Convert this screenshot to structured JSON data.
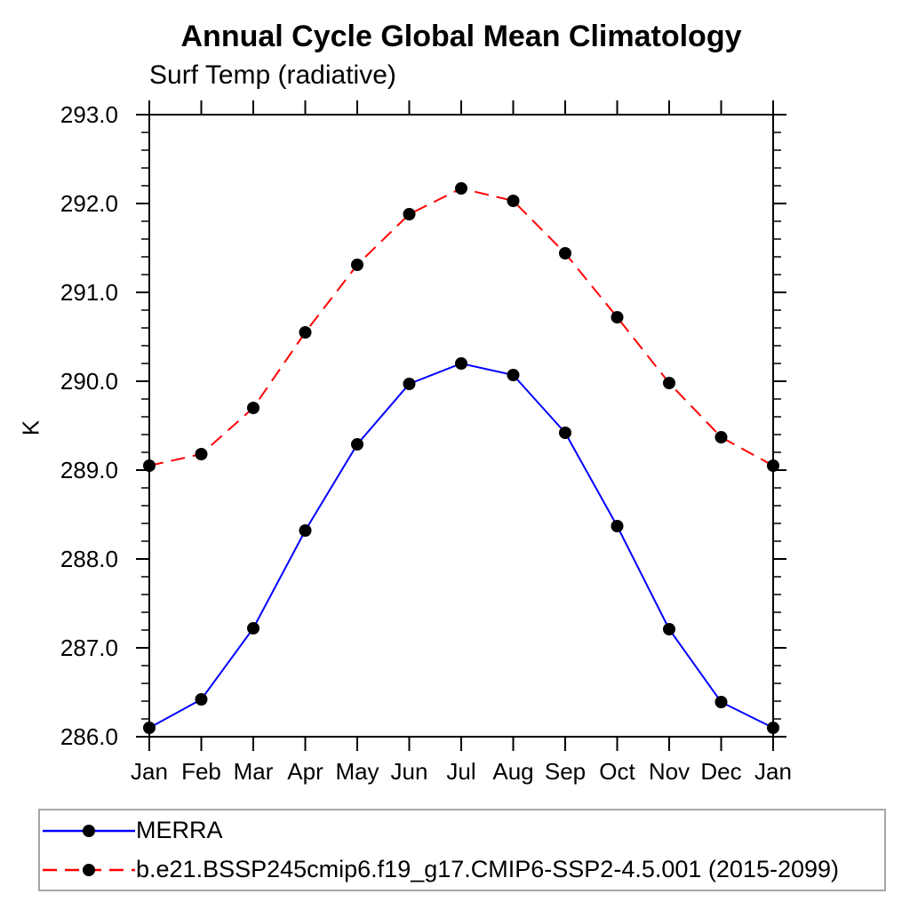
{
  "chart_data": {
    "type": "line",
    "title": "Annual Cycle Global Mean Climatology",
    "subtitle": "Surf Temp (radiative)",
    "ylabel": "K",
    "x_categories": [
      "Jan",
      "Feb",
      "Mar",
      "Apr",
      "May",
      "Jun",
      "Jul",
      "Aug",
      "Sep",
      "Oct",
      "Nov",
      "Dec",
      "Jan"
    ],
    "ylim": [
      286.0,
      293.0
    ],
    "ytick_step_major": 1.0,
    "ytick_step_minor": 0.2,
    "ytick_labels": [
      "286.0",
      "287.0",
      "288.0",
      "289.0",
      "290.0",
      "291.0",
      "292.0",
      "293.0"
    ],
    "grid": false,
    "legend_position": "bottom-left-box",
    "marker": "filled-circle",
    "marker_color": "#000000",
    "series": [
      {
        "name": "MERRA",
        "color": "#0000ff",
        "line_style": "solid",
        "values": [
          286.1,
          286.42,
          287.22,
          288.32,
          289.29,
          289.97,
          290.2,
          290.07,
          289.42,
          288.37,
          287.21,
          286.39,
          286.1
        ]
      },
      {
        "name": "b.e21.BSSP245cmip6.f19_g17.CMIP6-SSP2-4.5.001 (2015-2099)",
        "color": "#ff0000",
        "line_style": "dashed",
        "values": [
          289.05,
          289.18,
          289.7,
          290.55,
          291.31,
          291.88,
          292.17,
          292.03,
          291.44,
          290.72,
          289.98,
          289.37,
          289.05
        ]
      }
    ]
  },
  "colors": {
    "axis": "#000000",
    "text": "#000000",
    "legend_border": "#a6a6a6",
    "background": "#ffffff",
    "series_blue": "#0000ff",
    "series_red": "#ff0000",
    "marker": "#000000"
  }
}
